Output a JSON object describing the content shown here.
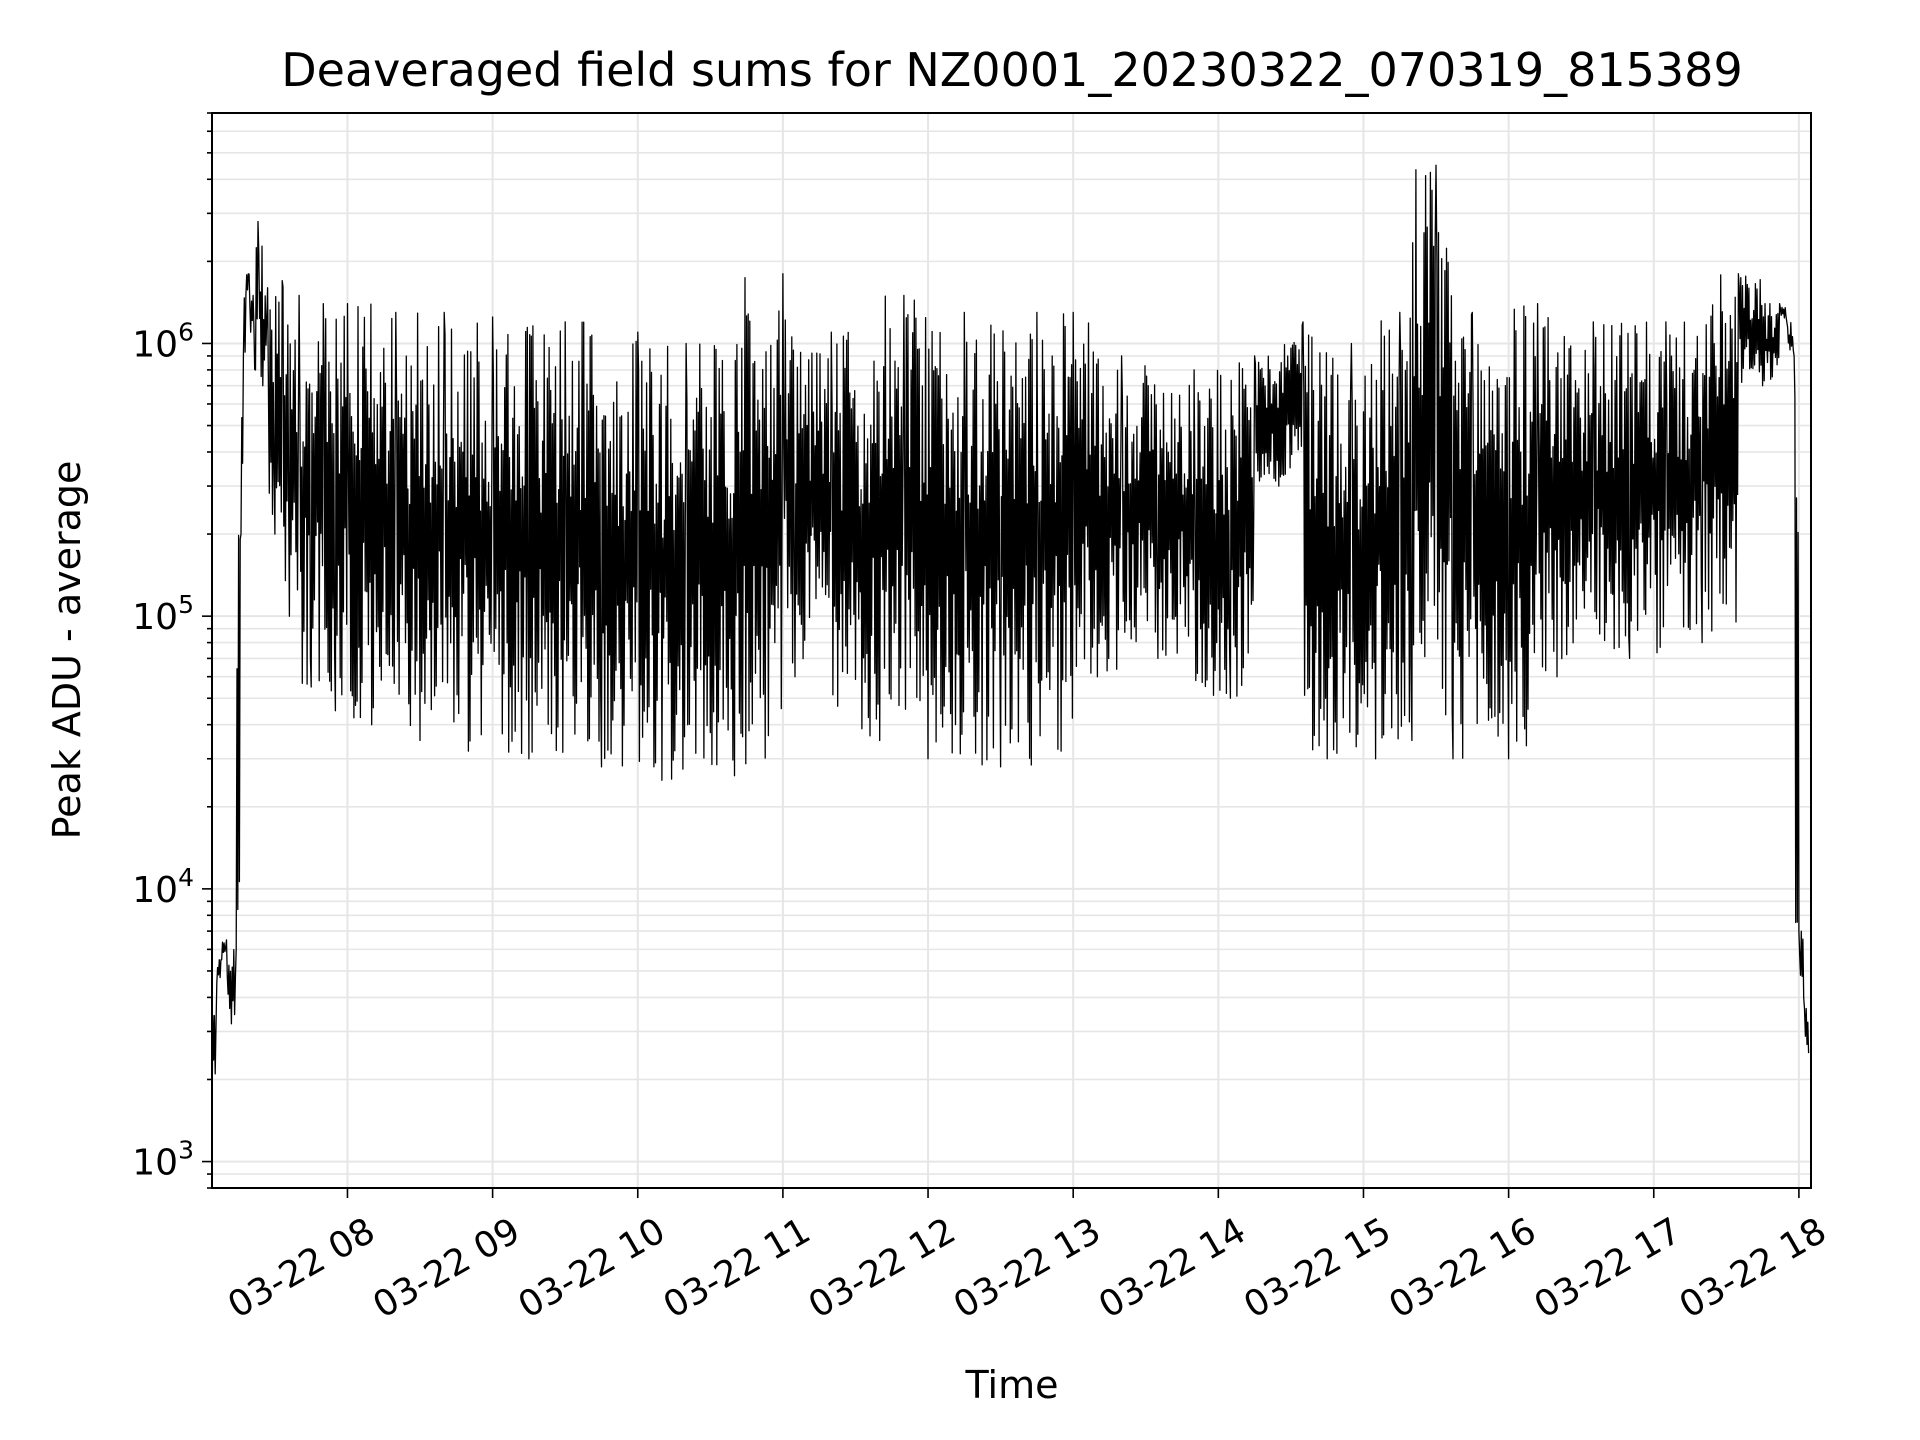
{
  "chart_data": {
    "type": "line",
    "title": "Deaveraged field sums for NZ0001_20230322_070319_815389",
    "xlabel": "Time",
    "ylabel": "Peak ADU - average",
    "yscale": "log",
    "ylim": [
      800,
      7000000
    ],
    "xlim": [
      "2023-03-22 07:04",
      "2023-03-22 18:05"
    ],
    "grid": true,
    "line_color": "#000000",
    "grid_color": "#e6e6e6",
    "x_ticks": [
      {
        "value": "2023-03-22 08:00",
        "label": "03-22 08"
      },
      {
        "value": "2023-03-22 09:00",
        "label": "03-22 09"
      },
      {
        "value": "2023-03-22 10:00",
        "label": "03-22 10"
      },
      {
        "value": "2023-03-22 11:00",
        "label": "03-22 11"
      },
      {
        "value": "2023-03-22 12:00",
        "label": "03-22 12"
      },
      {
        "value": "2023-03-22 13:00",
        "label": "03-22 13"
      },
      {
        "value": "2023-03-22 14:00",
        "label": "03-22 14"
      },
      {
        "value": "2023-03-22 15:00",
        "label": "03-22 15"
      },
      {
        "value": "2023-03-22 16:00",
        "label": "03-22 16"
      },
      {
        "value": "2023-03-22 17:00",
        "label": "03-22 17"
      },
      {
        "value": "2023-03-22 18:00",
        "label": "03-22 18"
      }
    ],
    "y_ticks": [
      {
        "value": 1000,
        "base": "10",
        "exp": "3"
      },
      {
        "value": 10000,
        "base": "10",
        "exp": "4"
      },
      {
        "value": 100000,
        "base": "10",
        "exp": "5"
      },
      {
        "value": 1000000,
        "base": "10",
        "exp": "6"
      }
    ],
    "series": [
      {
        "x": [
          "2023-03-22 07:04",
          "2023-03-22 07:06",
          "2023-03-22 07:08",
          "2023-03-22 07:10",
          "2023-03-22 07:12",
          "2023-03-22 07:14",
          "2023-03-22 07:16",
          "2023-03-22 07:17",
          "2023-03-22 07:18",
          "2023-03-22 07:19",
          "2023-03-22 07:20",
          "2023-03-22 07:21",
          "2023-03-22 07:22",
          "2023-03-22 07:23",
          "2023-03-22 07:25",
          "2023-03-22 07:27",
          "2023-03-22 07:30",
          "2023-03-22 07:33",
          "2023-03-22 07:36",
          "2023-03-22 07:40",
          "2023-03-22 07:45",
          "2023-03-22 07:50",
          "2023-03-22 07:55",
          "2023-03-22 08:00",
          "2023-03-22 08:10",
          "2023-03-22 08:20",
          "2023-03-22 08:30",
          "2023-03-22 08:40",
          "2023-03-22 08:50",
          "2023-03-22 09:00",
          "2023-03-22 09:15",
          "2023-03-22 09:30",
          "2023-03-22 09:45",
          "2023-03-22 10:00",
          "2023-03-22 10:10",
          "2023-03-22 10:20",
          "2023-03-22 10:40",
          "2023-03-22 11:00",
          "2023-03-22 11:05",
          "2023-03-22 11:20",
          "2023-03-22 11:40",
          "2023-03-22 11:50",
          "2023-03-22 12:00",
          "2023-03-22 12:15",
          "2023-03-22 12:30",
          "2023-03-22 12:45",
          "2023-03-22 12:55",
          "2023-03-22 13:00",
          "2023-03-22 13:10",
          "2023-03-22 13:20",
          "2023-03-22 13:35",
          "2023-03-22 13:50",
          "2023-03-22 14:05",
          "2023-03-22 14:15",
          "2023-03-22 14:25",
          "2023-03-22 14:35",
          "2023-03-22 14:45",
          "2023-03-22 14:55",
          "2023-03-22 15:05",
          "2023-03-22 15:15",
          "2023-03-22 15:20",
          "2023-03-22 15:30",
          "2023-03-22 15:37",
          "2023-03-22 15:45",
          "2023-03-22 16:00",
          "2023-03-22 16:12",
          "2023-03-22 16:20",
          "2023-03-22 16:35",
          "2023-03-22 16:50",
          "2023-03-22 17:05",
          "2023-03-22 17:20",
          "2023-03-22 17:35",
          "2023-03-22 17:45",
          "2023-03-22 17:52",
          "2023-03-22 17:55",
          "2023-03-22 17:58",
          "2023-03-22 18:00",
          "2023-03-22 18:02",
          "2023-03-22 18:04"
        ],
        "y": [
          1400,
          4500,
          5500,
          6500,
          3200,
          6000,
          200000,
          900000,
          1500000,
          1800000,
          1100000,
          1500000,
          800000,
          2800000,
          700000,
          1600000,
          200000,
          1700000,
          100000,
          1500000,
          55000,
          1400000,
          45000,
          1400000,
          40000,
          1300000,
          35000,
          1300000,
          32000,
          1250000,
          30000,
          1200000,
          28000,
          1100000,
          25000,
          1000000,
          26000,
          1800000,
          60000,
          1100000,
          35000,
          1500000,
          30000,
          1300000,
          28000,
          1300000,
          32000,
          1300000,
          60000,
          900000,
          70000,
          800000,
          50000,
          900000,
          300000,
          1200000,
          30000,
          1000000,
          30000,
          1300000,
          35000,
          4500000,
          30000,
          1300000,
          30000,
          1400000,
          60000,
          1200000,
          70000,
          1200000,
          80000,
          1800000,
          700000,
          1400000,
          1200000,
          900000,
          7000,
          4000,
          2500
        ]
      }
    ]
  }
}
